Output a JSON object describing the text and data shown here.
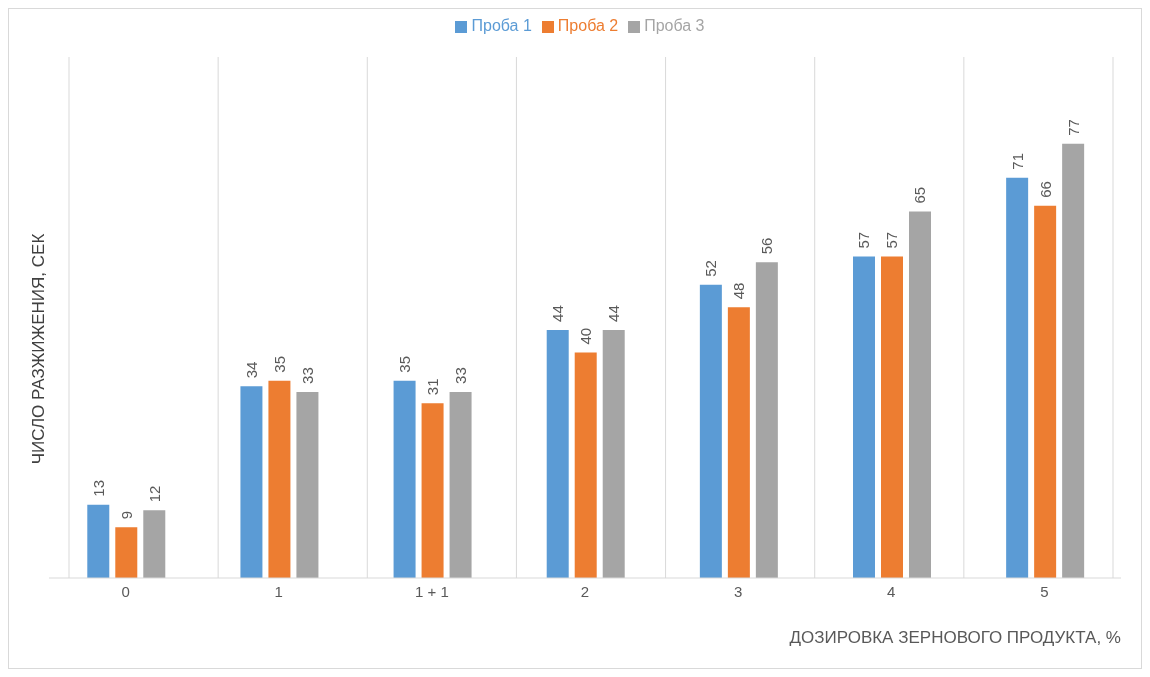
{
  "chart_data": {
    "type": "bar",
    "xlabel": "ДОЗИРОВКА ЗЕРНОВОГО ПРОДУКТА, %",
    "ylabel": "ЧИСЛО РАЗЖИЖЕНИЯ, СЕК",
    "categories": [
      "0",
      "1",
      "1 + 1",
      "2",
      "3",
      "4",
      "5"
    ],
    "series": [
      {
        "name": "Проба 1",
        "color": "#5b9bd5",
        "values": [
          13,
          34,
          35,
          44,
          52,
          57,
          71
        ]
      },
      {
        "name": "Проба 2",
        "color": "#ed7d31",
        "values": [
          9,
          35,
          31,
          40,
          48,
          57,
          66
        ]
      },
      {
        "name": "Проба 3",
        "color": "#a5a5a5",
        "values": [
          12,
          33,
          33,
          44,
          56,
          65,
          77
        ]
      }
    ],
    "data_labels": true,
    "grid": "x",
    "legend": "top",
    "tick_labels": "x"
  }
}
